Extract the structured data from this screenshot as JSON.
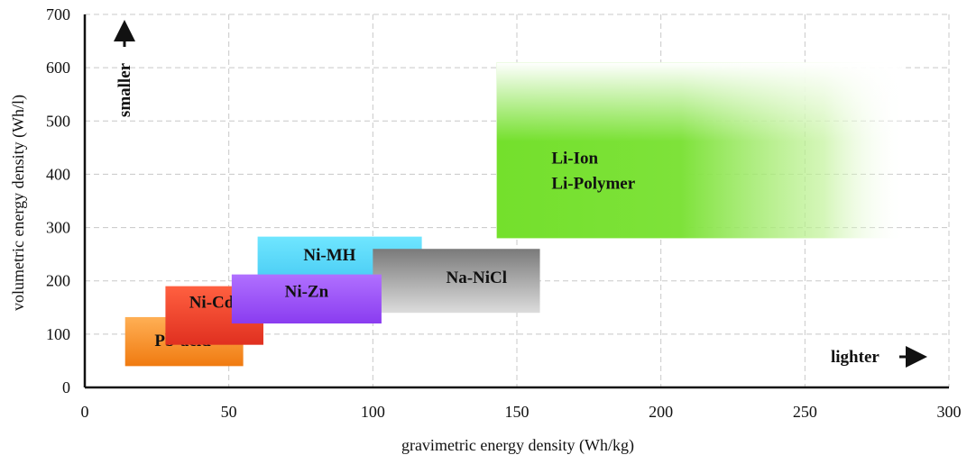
{
  "chart_data": {
    "type": "area",
    "title": "",
    "xlabel": "gravimetric energy density (Wh/kg)",
    "ylabel": "volumetric energy density (Wh/l)",
    "xlim": [
      0,
      300
    ],
    "ylim": [
      0,
      700
    ],
    "xticks": [
      "0",
      "50",
      "100",
      "150",
      "200",
      "250",
      "300"
    ],
    "yticks": [
      "0",
      "100",
      "200",
      "300",
      "400",
      "500",
      "600",
      "700"
    ],
    "grid": true,
    "annotations": {
      "y_arrow_label": "smaller",
      "x_arrow_label": "lighter"
    },
    "regions": [
      {
        "name": "Pb-acid",
        "lines": [
          "Pb-acid"
        ],
        "x": [
          14,
          55
        ],
        "y": [
          40,
          132
        ],
        "color": "#ff8c1a"
      },
      {
        "name": "Ni-Cd",
        "lines": [
          "Ni-Cd"
        ],
        "x": [
          28,
          62
        ],
        "y": [
          80,
          190
        ],
        "color": "#f0442a"
      },
      {
        "name": "Ni-MH",
        "lines": [
          "Ni-MH"
        ],
        "x": [
          60,
          117
        ],
        "y": [
          170,
          283
        ],
        "color": "#55d8f5"
      },
      {
        "name": "Na-NiCl",
        "lines": [
          "Na-NiCl"
        ],
        "x": [
          100,
          158
        ],
        "y": [
          140,
          260
        ],
        "color": "#9a9a9a"
      },
      {
        "name": "Ni-Zn",
        "lines": [
          "Ni-Zn"
        ],
        "x": [
          51,
          103
        ],
        "y": [
          120,
          212
        ],
        "color": "#9b52f0"
      },
      {
        "name": "Li-Ion Li-Polymer",
        "lines": [
          "Li-Ion",
          "Li-Polymer"
        ],
        "x": [
          143,
          285
        ],
        "y": [
          280,
          610
        ],
        "color": "#7ee23a"
      }
    ]
  }
}
